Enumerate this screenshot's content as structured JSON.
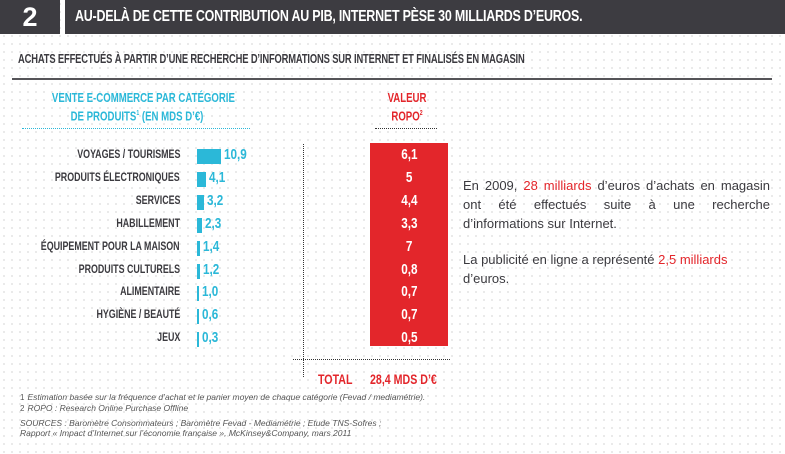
{
  "header": {
    "number": "2",
    "title": "AU-DELÀ DE CETTE CONTRIBUTION AU PIB, INTERNET PÈSE 30 MILLIARDS D’EUROS."
  },
  "subtitle": "ACHATS EFFECTUÉS À PARTIR D’UNE RECHERCHE D’INFORMATIONS SUR INTERNET ET FINALISÉS EN MAGASIN",
  "colors": {
    "ecommerce": "#2bb8d8",
    "ropo": "#e3262b",
    "header_bg": "#3d3c41"
  },
  "chart_data": {
    "type": "bar",
    "orientation": "horizontal",
    "title": "ACHATS EFFECTUÉS À PARTIR D’UNE RECHERCHE D’INFORMATIONS SUR INTERNET ET FINALISÉS EN MAGASIN",
    "categories": [
      "VOYAGES / TOURISMES",
      "PRODUITS ÉLECTRONIQUES",
      "SERVICES",
      "HABILLEMENT",
      "ÉQUIPEMENT POUR LA MAISON",
      "PRODUITS CULTURELS",
      "ALIMENTAIRE",
      "HYGIÈNE / BEAUTÉ",
      "JEUX"
    ],
    "series": [
      {
        "name": "Vente e-commerce par catégorie de produits (en Mds d’€)",
        "header_line1": "VENTE E-COMMERCE PAR CATÉGORIE",
        "header_line2": "DE PRODUITS",
        "header_sup": "1",
        "header_line2_suffix": " (EN MDS D’€)",
        "values": [
          10.9,
          4.1,
          3.2,
          2.3,
          1.4,
          1.2,
          1.0,
          0.6,
          0.3
        ],
        "labels": [
          "10,9",
          "4,1",
          "3,2",
          "2,3",
          "1,4",
          "1,2",
          "1,0",
          "0,6",
          "0,3"
        ]
      },
      {
        "name": "Valeur ROPO",
        "header_line1": "VALEUR",
        "header_line2": "ROPO",
        "header_sup": "2",
        "values": [
          6.1,
          5,
          4.4,
          3.3,
          7,
          0.8,
          0.7,
          0.7,
          0.5
        ],
        "labels": [
          "6,1",
          "5",
          "4,4",
          "3,3",
          "7",
          "0,8",
          "0,7",
          "0,7",
          "0,5"
        ]
      }
    ],
    "total": {
      "label": "TOTAL",
      "value": "28,4 MDS D’€"
    },
    "xlabel": "",
    "ylabel": "",
    "xlim": [
      0,
      10.9
    ]
  },
  "text": {
    "p1_a": "En 2009, ",
    "p1_highlight": "28 milliards",
    "p1_b": " d’euros d’achats en magasin ont été effectués suite à une recherche d’informations sur Internet.",
    "p2_a": "La publicité en ligne a représenté ",
    "p2_highlight": "2,5 milliards",
    "p2_b": " d’euros."
  },
  "footnotes": {
    "n1_num": "1",
    "n1": "Estimation basée sur la fréquence d’achat et le panier moyen de chaque catégorie (Fevad / mediamétrie).",
    "n2_num": "2",
    "n2": "ROPO : Research Online Purchase Offline",
    "sources_line1": "SOURCES : Baromètre Consommateurs ; Baromètre Fevad - Mediamétrie ; Etude TNS-Sofres ;",
    "sources_line2": "Rapport « Impact d’Internet sur l’économie française », McKinsey&Company, mars 2011"
  }
}
